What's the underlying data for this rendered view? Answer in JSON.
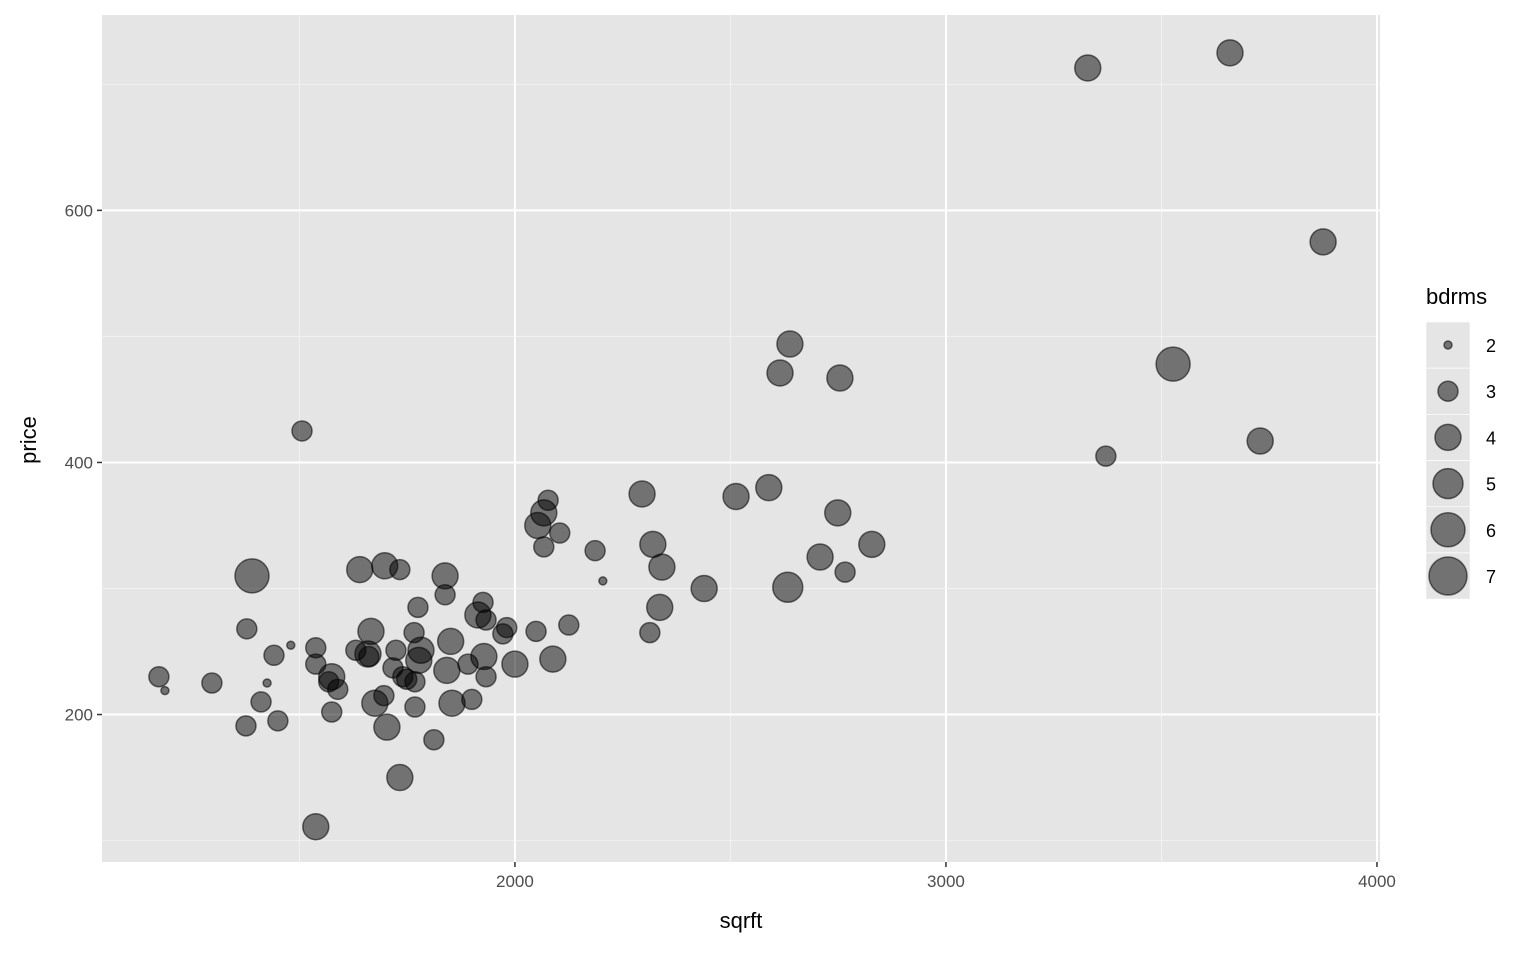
{
  "chart_data": {
    "type": "scatter",
    "title": "",
    "xlabel": "sqrft",
    "ylabel": "price",
    "xlim": [
      1042,
      4007
    ],
    "ylim": [
      83,
      755
    ],
    "x_ticks": [
      2000,
      3000,
      4000
    ],
    "y_ticks": [
      200,
      400,
      600
    ],
    "grid": true,
    "legend": {
      "title": "bdrms",
      "position": "right",
      "values": [
        2,
        3,
        4,
        5,
        6,
        7
      ]
    },
    "point_color": "#000000",
    "point_alpha": 0.5,
    "panel_color": "#e5e5e5",
    "points": [
      {
        "x": 3329,
        "y": 713,
        "bdrms": 4
      },
      {
        "x": 3659,
        "y": 725,
        "bdrms": 4
      },
      {
        "x": 3875,
        "y": 575,
        "bdrms": 4
      },
      {
        "x": 3527,
        "y": 478,
        "bdrms": 6
      },
      {
        "x": 3729,
        "y": 417,
        "bdrms": 4
      },
      {
        "x": 3371,
        "y": 405,
        "bdrms": 3
      },
      {
        "x": 2638,
        "y": 494,
        "bdrms": 4
      },
      {
        "x": 2615,
        "y": 471,
        "bdrms": 4
      },
      {
        "x": 2754,
        "y": 467,
        "bdrms": 4
      },
      {
        "x": 1506,
        "y": 425,
        "bdrms": 3
      },
      {
        "x": 2295,
        "y": 375,
        "bdrms": 4
      },
      {
        "x": 2513,
        "y": 373,
        "bdrms": 4
      },
      {
        "x": 2589,
        "y": 380,
        "bdrms": 4
      },
      {
        "x": 2749,
        "y": 360,
        "bdrms": 4
      },
      {
        "x": 2077,
        "y": 370,
        "bdrms": 3
      },
      {
        "x": 2067,
        "y": 360,
        "bdrms": 4
      },
      {
        "x": 2053,
        "y": 350,
        "bdrms": 4
      },
      {
        "x": 2104,
        "y": 344,
        "bdrms": 3
      },
      {
        "x": 2067,
        "y": 333,
        "bdrms": 3
      },
      {
        "x": 2186,
        "y": 330,
        "bdrms": 3
      },
      {
        "x": 2320,
        "y": 335,
        "bdrms": 4
      },
      {
        "x": 2341,
        "y": 317,
        "bdrms": 4
      },
      {
        "x": 2708,
        "y": 325,
        "bdrms": 4
      },
      {
        "x": 2828,
        "y": 335,
        "bdrms": 4
      },
      {
        "x": 2766,
        "y": 313,
        "bdrms": 3
      },
      {
        "x": 2633,
        "y": 301,
        "bdrms": 5
      },
      {
        "x": 2439,
        "y": 300,
        "bdrms": 4
      },
      {
        "x": 2204,
        "y": 306,
        "bdrms": 2
      },
      {
        "x": 2336,
        "y": 285,
        "bdrms": 4
      },
      {
        "x": 2313,
        "y": 265,
        "bdrms": 3
      },
      {
        "x": 2125,
        "y": 271,
        "bdrms": 3
      },
      {
        "x": 2088,
        "y": 244,
        "bdrms": 4
      },
      {
        "x": 2000,
        "y": 240,
        "bdrms": 4
      },
      {
        "x": 2049,
        "y": 266,
        "bdrms": 3
      },
      {
        "x": 1981,
        "y": 269,
        "bdrms": 3
      },
      {
        "x": 1972,
        "y": 264,
        "bdrms": 3
      },
      {
        "x": 1390,
        "y": 310,
        "bdrms": 6
      },
      {
        "x": 1378,
        "y": 268,
        "bdrms": 3
      },
      {
        "x": 1174,
        "y": 230,
        "bdrms": 3
      },
      {
        "x": 1188,
        "y": 219,
        "bdrms": 2
      },
      {
        "x": 1297,
        "y": 225,
        "bdrms": 3
      },
      {
        "x": 1425,
        "y": 225,
        "bdrms": 2
      },
      {
        "x": 1480,
        "y": 255,
        "bdrms": 2
      },
      {
        "x": 1441,
        "y": 247,
        "bdrms": 3
      },
      {
        "x": 1411,
        "y": 210,
        "bdrms": 3
      },
      {
        "x": 1376,
        "y": 191,
        "bdrms": 3
      },
      {
        "x": 1450,
        "y": 195,
        "bdrms": 3
      },
      {
        "x": 1538,
        "y": 253,
        "bdrms": 3
      },
      {
        "x": 1538,
        "y": 240,
        "bdrms": 3
      },
      {
        "x": 1575,
        "y": 230,
        "bdrms": 4
      },
      {
        "x": 1568,
        "y": 226,
        "bdrms": 3
      },
      {
        "x": 1589,
        "y": 220,
        "bdrms": 3
      },
      {
        "x": 1575,
        "y": 202,
        "bdrms": 3
      },
      {
        "x": 1538,
        "y": 111,
        "bdrms": 4
      },
      {
        "x": 1640,
        "y": 315,
        "bdrms": 4
      },
      {
        "x": 1698,
        "y": 318,
        "bdrms": 4
      },
      {
        "x": 1733,
        "y": 315,
        "bdrms": 3
      },
      {
        "x": 1838,
        "y": 310,
        "bdrms": 4
      },
      {
        "x": 1838,
        "y": 295,
        "bdrms": 3
      },
      {
        "x": 1775,
        "y": 285,
        "bdrms": 3
      },
      {
        "x": 1926,
        "y": 289,
        "bdrms": 3
      },
      {
        "x": 1914,
        "y": 279,
        "bdrms": 4
      },
      {
        "x": 1933,
        "y": 275,
        "bdrms": 3
      },
      {
        "x": 1666,
        "y": 266,
        "bdrms": 4
      },
      {
        "x": 1631,
        "y": 251,
        "bdrms": 3
      },
      {
        "x": 1659,
        "y": 248,
        "bdrms": 4
      },
      {
        "x": 1661,
        "y": 246,
        "bdrms": 3
      },
      {
        "x": 1766,
        "y": 265,
        "bdrms": 3
      },
      {
        "x": 1724,
        "y": 251,
        "bdrms": 3
      },
      {
        "x": 1782,
        "y": 251,
        "bdrms": 4
      },
      {
        "x": 1777,
        "y": 243,
        "bdrms": 4
      },
      {
        "x": 1851,
        "y": 258,
        "bdrms": 4
      },
      {
        "x": 1717,
        "y": 237,
        "bdrms": 3
      },
      {
        "x": 1740,
        "y": 230,
        "bdrms": 3
      },
      {
        "x": 1749,
        "y": 228,
        "bdrms": 3
      },
      {
        "x": 1768,
        "y": 226,
        "bdrms": 3
      },
      {
        "x": 1842,
        "y": 235,
        "bdrms": 4
      },
      {
        "x": 1891,
        "y": 240,
        "bdrms": 3
      },
      {
        "x": 1928,
        "y": 246,
        "bdrms": 4
      },
      {
        "x": 1933,
        "y": 230,
        "bdrms": 3
      },
      {
        "x": 1696,
        "y": 215,
        "bdrms": 3
      },
      {
        "x": 1675,
        "y": 209,
        "bdrms": 4
      },
      {
        "x": 1768,
        "y": 206,
        "bdrms": 3
      },
      {
        "x": 1854,
        "y": 209,
        "bdrms": 4
      },
      {
        "x": 1900,
        "y": 212,
        "bdrms": 3
      },
      {
        "x": 1703,
        "y": 190,
        "bdrms": 4
      },
      {
        "x": 1812,
        "y": 180,
        "bdrms": 3
      },
      {
        "x": 1733,
        "y": 150,
        "bdrms": 4
      }
    ]
  }
}
